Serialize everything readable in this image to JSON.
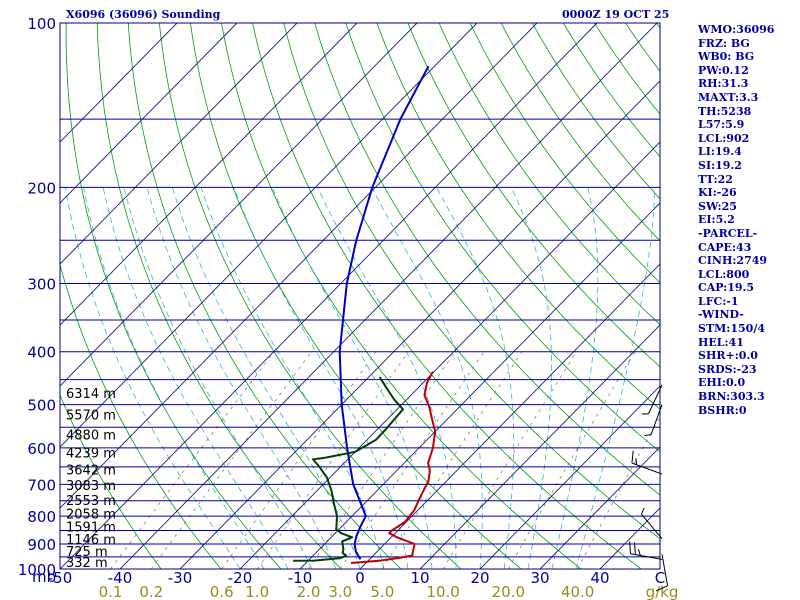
{
  "header": {
    "title_left": "X6096 (36096) Sounding",
    "title_right": "0000Z 19 OCT 25"
  },
  "indices": [
    "WMO:36096",
    "FRZ: BG",
    "WB0: BG",
    "PW:0.12",
    "RH:31.3",
    "MAXT:3.3",
    "TH:5238",
    "L57:5.9",
    "LCL:902",
    "LI:19.4",
    "SI:19.2",
    "TT:22",
    "KI:-26",
    "SW:25",
    "EI:5.2",
    "-PARCEL-",
    "CAPE:43",
    "CINH:2749",
    "LCL:800",
    "CAP:19.5",
    "LFC:-1",
    "-WIND-",
    "STM:150/4",
    "HEL:41",
    "SHR+:0.0",
    "SRDS:-23",
    "EHI:0.0",
    "BRN:303.3",
    "BSHR:0"
  ],
  "colors": {
    "frame": "#000080",
    "isobar": "#0000a0",
    "isotherm": "#1a1a7a",
    "dry_adiabat": "#00a000",
    "moist_adiabat": "#3cb0d0",
    "mixing_ratio": "#707070",
    "temperature": "#c00000",
    "dewpoint": "#004000",
    "parcel": "#0000c0",
    "axis_text": "#0000a0",
    "mixing_text": "#9a8a20",
    "wind": "#000000"
  },
  "chart_data": {
    "type": "skew-t log-p sounding",
    "title": "X6096 (36096) Sounding 0000Z 19 OCT 25",
    "pressure_range_mb": [
      1000,
      100
    ],
    "temperature_range_c": [
      -50,
      50
    ],
    "y_axis_label": "mb",
    "x_axis_unit": "C",
    "mixing_ratio_unit": "g/kg",
    "pressure_ticks": [
      100,
      200,
      300,
      400,
      500,
      600,
      700,
      800,
      900,
      1000
    ],
    "isobars_mb": [
      100,
      150,
      200,
      250,
      300,
      350,
      400,
      450,
      500,
      550,
      600,
      650,
      700,
      750,
      800,
      850,
      900,
      950,
      1000
    ],
    "temperature_ticks": [
      -50,
      -40,
      -30,
      -20,
      -10,
      0,
      10,
      20,
      30,
      40
    ],
    "mixing_ratio_labels": [
      "0.1",
      "0.2",
      "0.6",
      "1.0",
      "2.0",
      "3.0",
      "5.0",
      "10.0",
      "20.0",
      "40.0"
    ],
    "mixing_ratio_values_gkg": [
      0.1,
      0.2,
      0.6,
      1.0,
      2.0,
      3.0,
      5.0,
      10.0,
      20.0,
      40.0
    ],
    "height_labels": [
      {
        "label": "332 m",
        "p": 976
      },
      {
        "label": "725 m",
        "p": 931
      },
      {
        "label": "1146 m",
        "p": 885
      },
      {
        "label": "1591 m",
        "p": 840
      },
      {
        "label": "2058 m",
        "p": 795
      },
      {
        "label": "2553 m",
        "p": 750
      },
      {
        "label": "3083 m",
        "p": 705
      },
      {
        "label": "3642 m",
        "p": 660
      },
      {
        "label": "4239 m",
        "p": 614
      },
      {
        "label": "4880 m",
        "p": 569
      },
      {
        "label": "5570 m",
        "p": 523
      },
      {
        "label": "6314 m",
        "p": 478
      }
    ],
    "temperature_profile": [
      {
        "p": 975,
        "t": -2.5
      },
      {
        "p": 965,
        "t": 2.0
      },
      {
        "p": 955,
        "t": 4.5
      },
      {
        "p": 945,
        "t": 6.5
      },
      {
        "p": 930,
        "t": 6.0
      },
      {
        "p": 900,
        "t": 5.0
      },
      {
        "p": 875,
        "t": 1.0
      },
      {
        "p": 860,
        "t": -1.0
      },
      {
        "p": 850,
        "t": -1.0
      },
      {
        "p": 820,
        "t": -0.2
      },
      {
        "p": 780,
        "t": -0.6
      },
      {
        "p": 740,
        "t": -1.7
      },
      {
        "p": 710,
        "t": -2.5
      },
      {
        "p": 690,
        "t": -3.0
      },
      {
        "p": 660,
        "t": -4.5
      },
      {
        "p": 640,
        "t": -6.0
      },
      {
        "p": 600,
        "t": -7.7
      },
      {
        "p": 560,
        "t": -10.0
      },
      {
        "p": 530,
        "t": -12.7
      },
      {
        "p": 505,
        "t": -15.0
      },
      {
        "p": 480,
        "t": -17.8
      },
      {
        "p": 455,
        "t": -19.4
      },
      {
        "p": 435,
        "t": -20.2
      }
    ],
    "dewpoint_profile": [
      {
        "p": 966,
        "t": -12.5
      },
      {
        "p": 965,
        "t": -9.0
      },
      {
        "p": 955,
        "t": -5.0
      },
      {
        "p": 945,
        "t": -4.5
      },
      {
        "p": 935,
        "t": -5.5
      },
      {
        "p": 920,
        "t": -6.0
      },
      {
        "p": 890,
        "t": -7.5
      },
      {
        "p": 875,
        "t": -6.5
      },
      {
        "p": 860,
        "t": -9.0
      },
      {
        "p": 845,
        "t": -10.5
      },
      {
        "p": 800,
        "t": -12.5
      },
      {
        "p": 760,
        "t": -15.0
      },
      {
        "p": 720,
        "t": -17.5
      },
      {
        "p": 680,
        "t": -20.5
      },
      {
        "p": 650,
        "t": -23.5
      },
      {
        "p": 630,
        "t": -25.8
      },
      {
        "p": 625,
        "t": -24.0
      },
      {
        "p": 610,
        "t": -20.0
      },
      {
        "p": 580,
        "t": -18.5
      },
      {
        "p": 555,
        "t": -18.6
      },
      {
        "p": 510,
        "t": -19.0
      },
      {
        "p": 490,
        "t": -22.0
      },
      {
        "p": 465,
        "t": -25.4
      },
      {
        "p": 445,
        "t": -28.2
      }
    ],
    "parcel_profile": [
      {
        "p": 960,
        "t": -1.5
      },
      {
        "p": 930,
        "t": -3.5
      },
      {
        "p": 900,
        "t": -5.0
      },
      {
        "p": 870,
        "t": -6.0
      },
      {
        "p": 840,
        "t": -6.8
      },
      {
        "p": 800,
        "t": -7.7
      },
      {
        "p": 760,
        "t": -10.5
      },
      {
        "p": 700,
        "t": -15.0
      },
      {
        "p": 600,
        "t": -22.0
      },
      {
        "p": 500,
        "t": -30.0
      },
      {
        "p": 400,
        "t": -39.0
      },
      {
        "p": 300,
        "t": -49.0
      },
      {
        "p": 250,
        "t": -54.5
      },
      {
        "p": 200,
        "t": -60.5
      },
      {
        "p": 150,
        "t": -67.0
      },
      {
        "p": 120,
        "t": -71.0
      }
    ],
    "wind_barbs": [
      {
        "p": 960,
        "dir": 280,
        "speed_kt": 25
      },
      {
        "p": 940,
        "dir": 170,
        "speed_kt": 10
      },
      {
        "p": 880,
        "dir": 320,
        "speed_kt": 5
      },
      {
        "p": 670,
        "dir": 290,
        "speed_kt": 15
      },
      {
        "p": 500,
        "dir": 200,
        "speed_kt": 5
      },
      {
        "p": 460,
        "dir": 205,
        "speed_kt": 5
      }
    ]
  }
}
